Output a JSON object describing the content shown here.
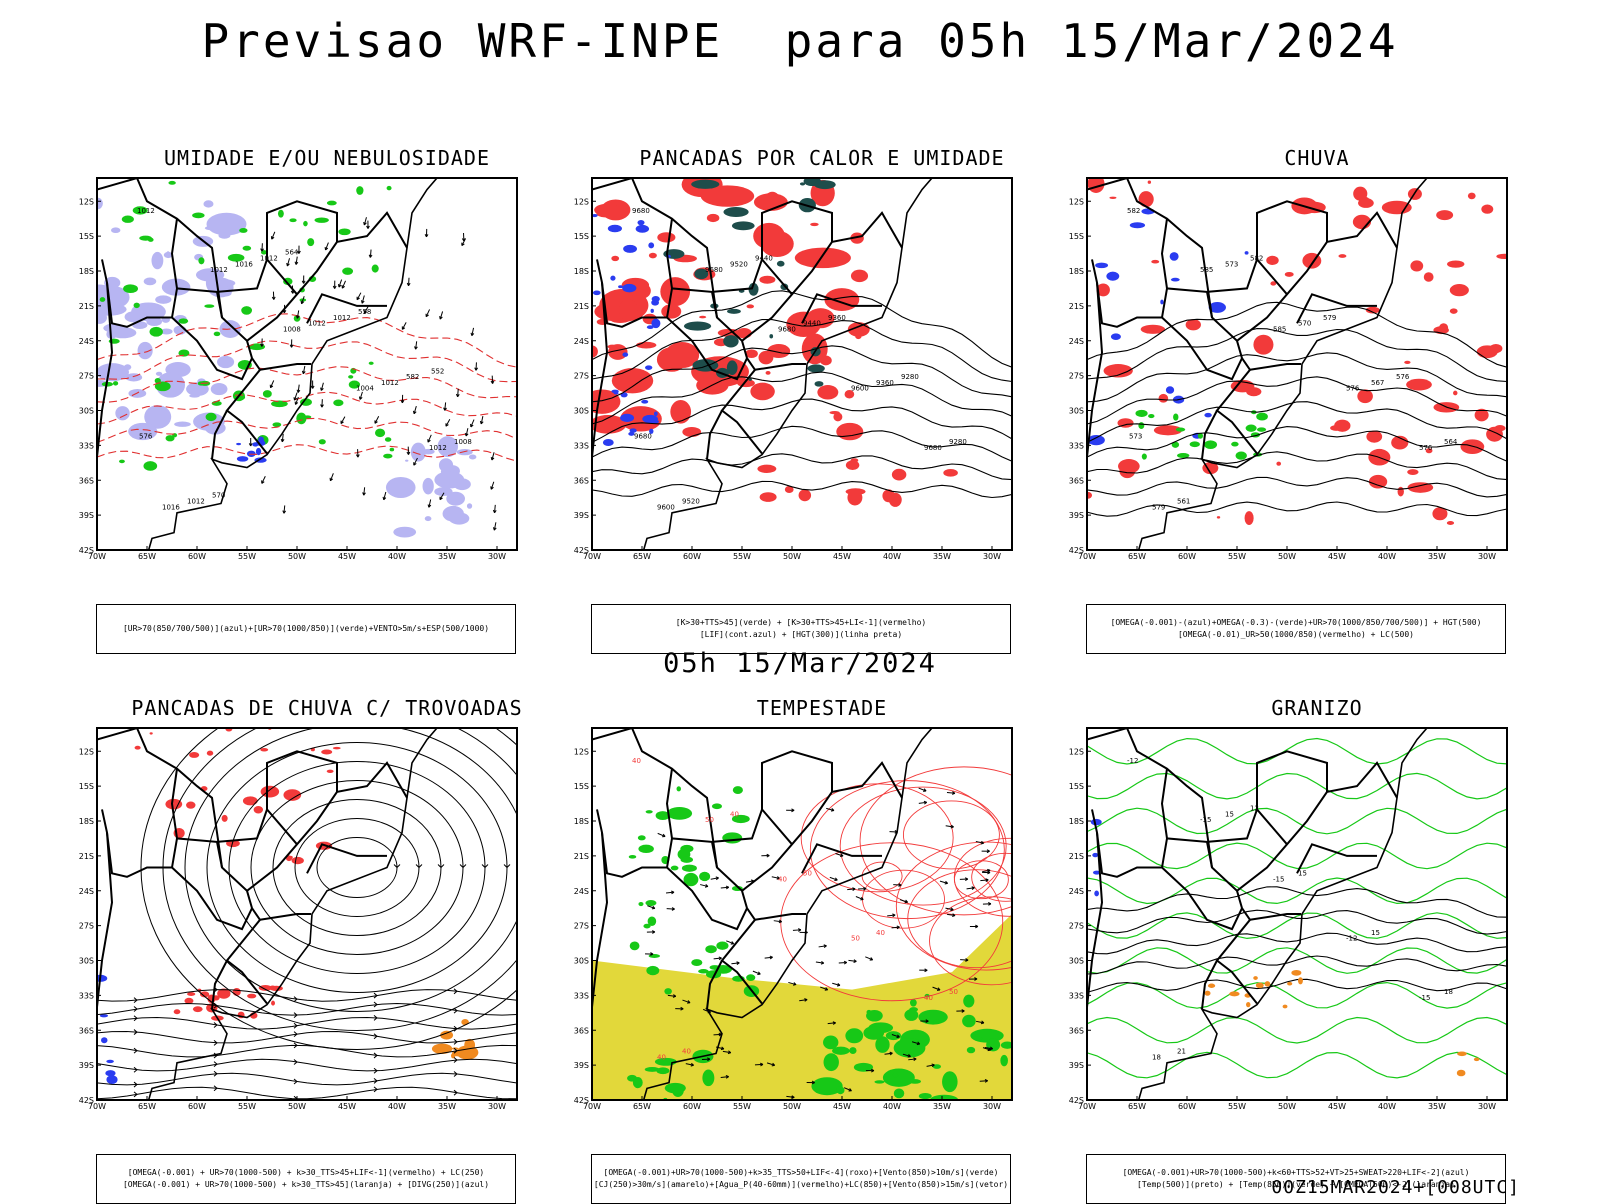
{
  "page": {
    "title": "Previsao WRF-INPE  para 05h 15/Mar/2024",
    "mid_title": "05h 15/Mar/2024",
    "footer": "00Z15MAR2024+[008UTC]"
  },
  "axes": {
    "lat_labels": [
      "12S",
      "15S",
      "18S",
      "21S",
      "24S",
      "27S",
      "30S",
      "33S",
      "36S",
      "39S",
      "42S"
    ],
    "lon_labels": [
      "70W",
      "65W",
      "60W",
      "55W",
      "50W",
      "45W",
      "40W",
      "35W",
      "30W"
    ]
  },
  "colors": {
    "red": "#f23a3a",
    "green": "#17c817",
    "blue": "#2a3cf0",
    "lavender": "#b7b5f2",
    "darkteal": "#1e4d4b",
    "yellow": "#e2d83a",
    "orange": "#f08a20",
    "darkred_dash": "#e03030"
  },
  "panels": [
    {
      "id": "umidade",
      "title": "UMIDADE E/OU NEBULOSIDADE",
      "legend": [
        "[UR>70(850/700/500)](azul)+[UR>70(1000/850)](verde)+VENTO>5m/s+ESP(500/1000)"
      ],
      "labels": [
        "1012",
        "1012",
        "1008",
        "1004",
        "1012",
        "1016",
        "1016",
        "1012",
        "1012",
        "1008",
        "1012",
        "1012",
        "1012",
        "582",
        "576",
        "570",
        "564",
        "558",
        "552"
      ]
    },
    {
      "id": "pancadas_calor",
      "title": "PANCADAS POR CALOR E UMIDADE",
      "legend": [
        "[K>30+TTS>45](verde) + [K>30+TTS>45+LI<-1](vermelho)",
        "[LIF](cont.azul) + [HGT(300)](linha preta)"
      ],
      "labels": [
        "9680",
        "9680",
        "9680",
        "9600",
        "9680",
        "9600",
        "9520",
        "9440",
        "9360",
        "9280",
        "9520",
        "9440",
        "9360",
        "9280",
        "9680"
      ]
    },
    {
      "id": "chuva",
      "title": "CHUVA",
      "legend": [
        "[OMEGA(-0.001)-(azul)+OMEGA(-0.3)-(verde)+UR>70(1000/850/700/500)] + HGT(500)",
        "[OMEGA(-0.01)_UR>50(1000/850)(vermelho) + LC(500)"
      ],
      "labels": [
        "582",
        "585",
        "585",
        "576",
        "576",
        "579",
        "573",
        "570",
        "567",
        "564",
        "561",
        "582",
        "579",
        "576",
        "573"
      ]
    },
    {
      "id": "trovoadas",
      "title": "PANCADAS DE CHUVA C/ TROVOADAS",
      "legend": [
        "[OMEGA(-0.001) + UR>70(1000-500) + k>30_TTS>45+LIF<-1](vermelho) + LC(250)",
        "[OMEGA(-0.001) + UR>70(1000-500) + k>30_TTS>45](laranja) + [DIVG(250)](azul)"
      ],
      "labels": []
    },
    {
      "id": "tempestade",
      "title": "TEMPESTADE",
      "legend": [
        "[OMEGA(-0.001)+UR>70(1000-500)+k>35_TTS>50+LIF<-4](roxo)+[Vento(850)>10m/s](verde)",
        "[CJ(250)>30m/s](amarelo)+[Agua_P(40-60mm)](vermelho)+LC(850)+[Vento(850)>15m/s](vetor)"
      ],
      "labels": [
        "40",
        "50",
        "40",
        "50",
        "40",
        "40",
        "40",
        "50",
        "40",
        "50",
        "40"
      ]
    },
    {
      "id": "granizo",
      "title": "GRANIZO",
      "legend": [
        "[OMEGA(-0.001)+UR>70(1000-500)+k<60+TTS>52+VT>25+SWEAT>220+LIF<-2](azul)",
        "[Temp(500)](preto) + [Temp(850)](verde) + [OMEGA(500)<-2](laranja)"
      ],
      "labels": [
        "-12",
        "-15",
        "-15",
        "-12",
        "-15",
        "18",
        "15",
        "15",
        "15",
        "18",
        "21",
        "12"
      ]
    }
  ]
}
